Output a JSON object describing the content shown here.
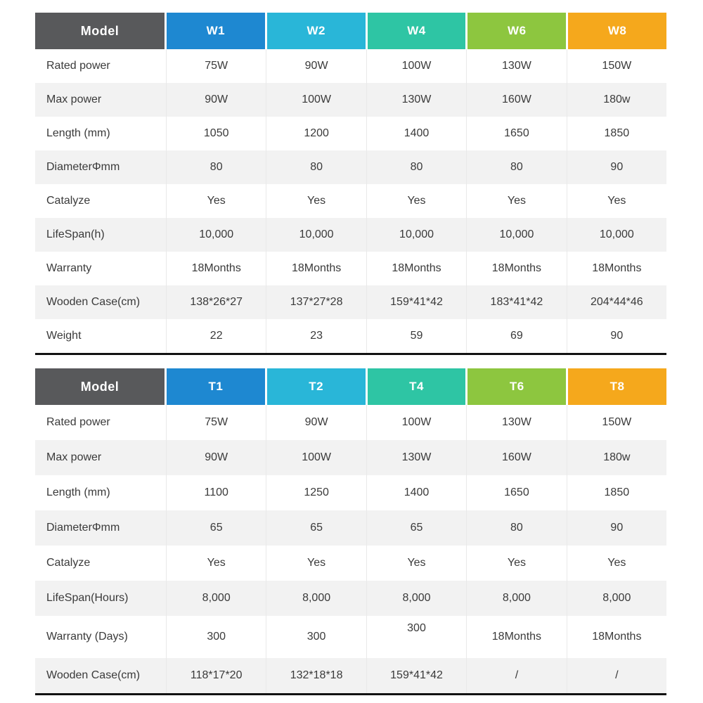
{
  "colors": {
    "model_header_bg": "#58595B",
    "column_header_colors": [
      "#1E88D1",
      "#29B6D8",
      "#2EC5A4",
      "#8DC63F",
      "#F5A81C"
    ],
    "row_shade": "#F2F2F2",
    "header_text": "#FFFFFF",
    "body_text": "#3A3A3A",
    "table_bottom_rule": "#121212"
  },
  "chart_data": [
    {
      "type": "table",
      "title": "W series heater specifications",
      "model_label": "Model",
      "columns": [
        "W1",
        "W2",
        "W4",
        "W6",
        "W8"
      ],
      "rows": [
        {
          "label": "Rated power",
          "values": [
            "75W",
            "90W",
            "100W",
            "130W",
            "150W"
          ]
        },
        {
          "label": "Max power",
          "values": [
            "90W",
            "100W",
            "130W",
            "160W",
            "180w"
          ]
        },
        {
          "label": "Length (mm)",
          "values": [
            "1050",
            "1200",
            "1400",
            "1650",
            "1850"
          ]
        },
        {
          "label": "DiameterΦmm",
          "values": [
            "80",
            "80",
            "80",
            "80",
            "90"
          ]
        },
        {
          "label": "Catalyze",
          "values": [
            "Yes",
            "Yes",
            "Yes",
            "Yes",
            "Yes"
          ]
        },
        {
          "label": "LifeSpan(h)",
          "values": [
            "10,000",
            "10,000",
            "10,000",
            "10,000",
            "10,000"
          ]
        },
        {
          "label": "Warranty",
          "values": [
            "18Months",
            "18Months",
            "18Months",
            "18Months",
            "18Months"
          ]
        },
        {
          "label": "Wooden Case(cm)",
          "values": [
            "138*26*27",
            "137*27*28",
            "159*41*42",
            "183*41*42",
            "204*44*46"
          ]
        },
        {
          "label": "Weight",
          "values": [
            "22",
            "23",
            "59",
            "69",
            "90"
          ]
        }
      ]
    },
    {
      "type": "table",
      "title": "T series heater specifications",
      "model_label": "Model",
      "columns": [
        "T1",
        "T2",
        "T4",
        "T6",
        "T8"
      ],
      "rows": [
        {
          "label": "Rated power",
          "values": [
            "75W",
            "90W",
            "100W",
            "130W",
            "150W"
          ]
        },
        {
          "label": "Max power",
          "values": [
            "90W",
            "100W",
            "130W",
            "160W",
            "180w"
          ]
        },
        {
          "label": "Length (mm)",
          "values": [
            "1100",
            "1250",
            "1400",
            "1650",
            "1850"
          ]
        },
        {
          "label": "DiameterΦmm",
          "values": [
            "65",
            "65",
            "65",
            "80",
            "90"
          ]
        },
        {
          "label": "Catalyze",
          "values": [
            "Yes",
            "Yes",
            "Yes",
            "Yes",
            "Yes"
          ]
        },
        {
          "label": "LifeSpan(Hours)",
          "values": [
            "8,000",
            "8,000",
            "8,000",
            "8,000",
            "8,000"
          ]
        },
        {
          "label": "Warranty (Days)",
          "values": [
            "300",
            "300",
            "300",
            "18Months",
            "18Months"
          ]
        },
        {
          "label": "Wooden Case(cm)",
          "values": [
            "118*17*20",
            "132*18*18",
            "159*41*42",
            "/",
            "/"
          ]
        }
      ]
    }
  ]
}
